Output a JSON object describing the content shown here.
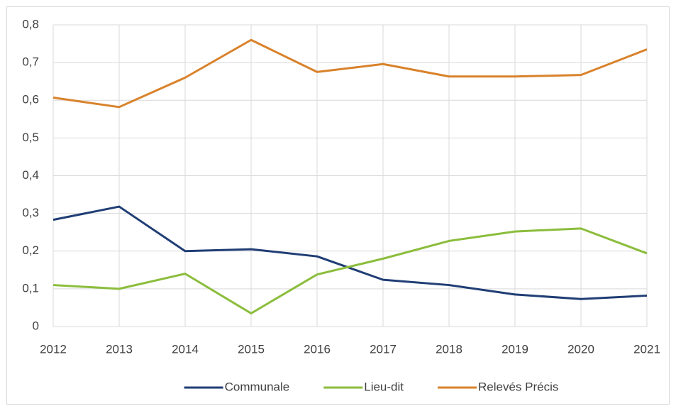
{
  "chart_data": {
    "type": "line",
    "categories": [
      "2012",
      "2013",
      "2014",
      "2015",
      "2016",
      "2017",
      "2018",
      "2019",
      "2020",
      "2021"
    ],
    "series": [
      {
        "name": "Communale",
        "color": "#203e75",
        "values": [
          0.283,
          0.318,
          0.2,
          0.205,
          0.186,
          0.124,
          0.11,
          0.085,
          0.073,
          0.082
        ]
      },
      {
        "name": "Lieu-dit",
        "color": "#8bbd3c",
        "values": [
          0.11,
          0.1,
          0.14,
          0.035,
          0.138,
          0.18,
          0.227,
          0.252,
          0.26,
          0.194
        ]
      },
      {
        "name": "Relevés Précis",
        "color": "#d9822b",
        "values": [
          0.607,
          0.582,
          0.66,
          0.76,
          0.675,
          0.696,
          0.663,
          0.663,
          0.667,
          0.735
        ]
      }
    ],
    "ylim": [
      0,
      0.8
    ],
    "yticks": [
      0,
      {
        "value": 0.1,
        "label": "0,1"
      },
      {
        "value": 0.2,
        "label": "0,2"
      },
      {
        "value": 0.3,
        "label": "0,3"
      },
      {
        "value": 0.4,
        "label": "0,4"
      },
      {
        "value": 0.5,
        "label": "0,5"
      },
      {
        "value": 0.6,
        "label": "0,6"
      },
      {
        "value": 0.7,
        "label": "0,7"
      },
      {
        "value": 0.8,
        "label": "0,8"
      }
    ],
    "grid": true,
    "legend": "bottom"
  }
}
